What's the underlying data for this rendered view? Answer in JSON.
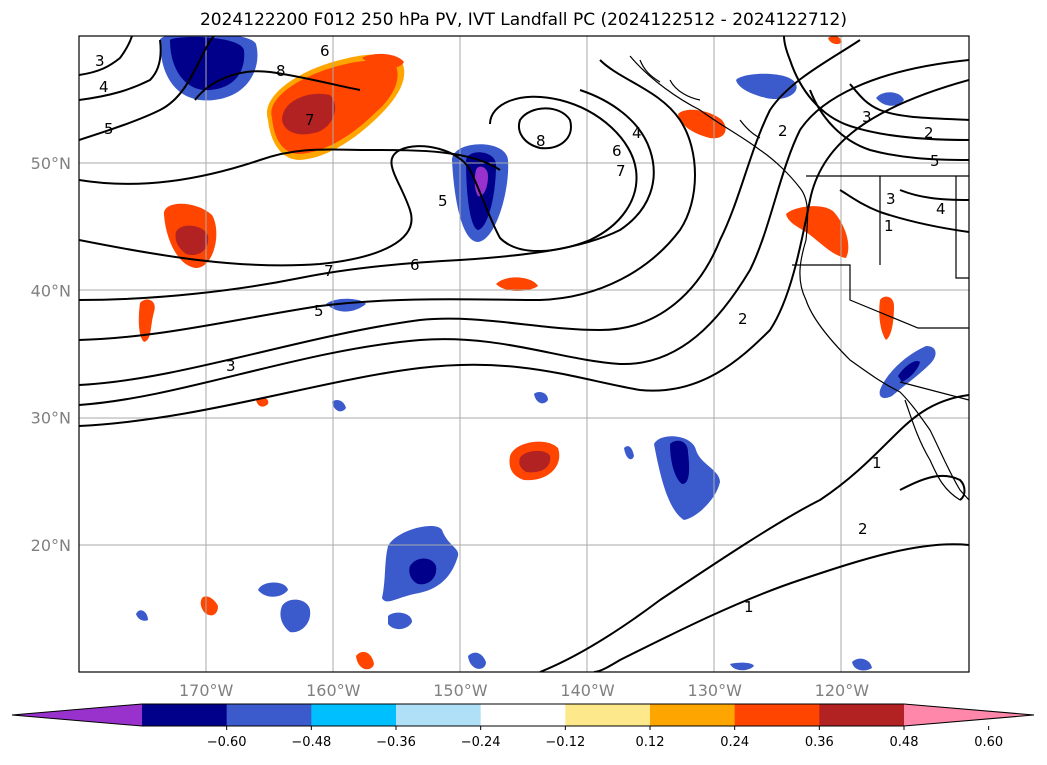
{
  "title": "2024122200 F012 250 hPa PV, IVT Landfall PC (2024122512 - 2024122712)",
  "map": {
    "projection": "PlateCarree",
    "lon_range": [
      -180,
      -110
    ],
    "lat_range": [
      10,
      60
    ],
    "lat_ticks": [
      {
        "value": 20,
        "label": "20°N"
      },
      {
        "value": 30,
        "label": "30°N"
      },
      {
        "value": 40,
        "label": "40°N"
      },
      {
        "value": 50,
        "label": "50°N"
      }
    ],
    "lon_ticks": [
      {
        "value": -170,
        "label": "170°W"
      },
      {
        "value": -160,
        "label": "160°W"
      },
      {
        "value": -150,
        "label": "150°W"
      },
      {
        "value": -140,
        "label": "140°W"
      },
      {
        "value": -130,
        "label": "130°W"
      },
      {
        "value": -120,
        "label": "120°W"
      }
    ],
    "grid": true,
    "contour_color": "#000000"
  },
  "colorbar": {
    "labels": [
      "−0.60",
      "−0.48",
      "−0.36",
      "−0.24",
      "−0.12",
      "0.12",
      "0.24",
      "0.36",
      "0.48",
      "0.60"
    ],
    "colors": [
      "#9932cc",
      "#00008b",
      "#3b5bcc",
      "#00bfff",
      "#b0e0f8",
      "#ffffff",
      "#fde98b",
      "#ffa500",
      "#ff4500",
      "#b22222",
      "#ff88aa"
    ]
  }
}
